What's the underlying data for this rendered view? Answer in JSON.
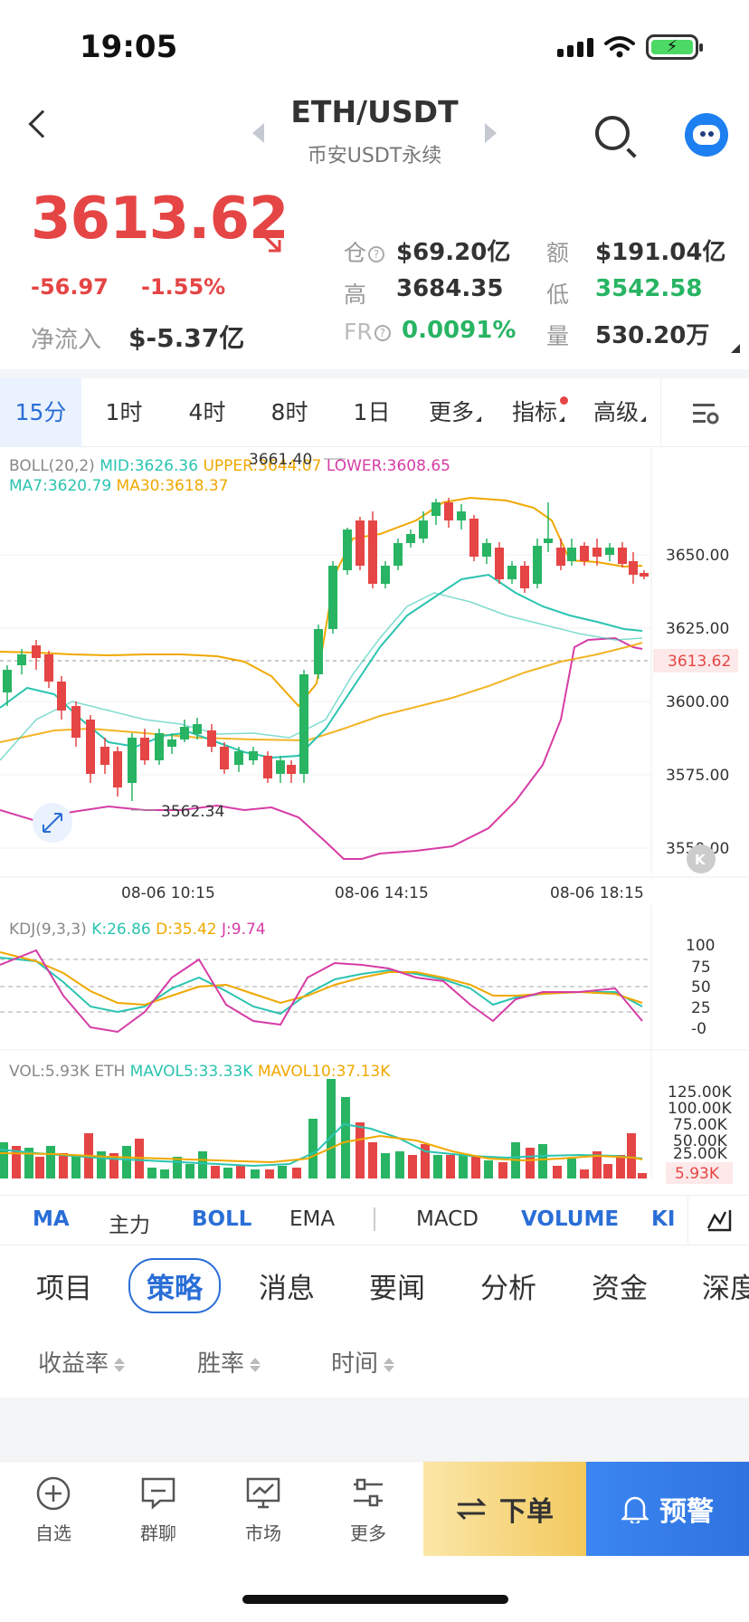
{
  "status_bar": {
    "time": "19:05"
  },
  "header": {
    "title": "ETH/USDT",
    "subtitle": "币安USDT永续"
  },
  "price": {
    "last": "3613.62",
    "change": "-56.97",
    "change_pct": "-1.55%",
    "inflow_label": "净流入",
    "inflow_value": "$-5.37亿",
    "open_interest_label": "仓",
    "open_interest": "$69.20亿",
    "amount_label": "额",
    "amount": "$191.04亿",
    "high_label": "高",
    "high": "3684.35",
    "low_label": "低",
    "low": "3542.58",
    "fr_label": "FR",
    "fr": "0.0091%",
    "volume_label": "量",
    "volume": "530.20万"
  },
  "interval_tabs": [
    {
      "label": "15分",
      "active": true
    },
    {
      "label": "1时"
    },
    {
      "label": "4时"
    },
    {
      "label": "8时"
    },
    {
      "label": "1日"
    },
    {
      "label": "更多"
    },
    {
      "label": "指标"
    },
    {
      "label": "高级"
    }
  ],
  "main_chart": {
    "boll_label": "BOLL(20,2)",
    "mid": "MID:3626.36",
    "upper": "UPPER:3644.07",
    "lower": "LOWER:3608.65",
    "ma7": "MA7:3620.79",
    "ma30": "MA30:3618.37",
    "max_label": "3661.40",
    "min_label": "3562.34",
    "price_tag": "3613.62",
    "y_ticks": [
      "3650.00",
      "3625.00",
      "3600.00",
      "3575.00",
      "3550.00"
    ],
    "x_ticks": [
      "08-06 10:15",
      "08-06 14:15",
      "08-06 18:15"
    ]
  },
  "kdj": {
    "label": "KDJ(9,3,3)",
    "k": "K:26.86",
    "d": "D:35.42",
    "j": "J:9.74",
    "y_ticks": [
      "100",
      "75",
      "50",
      "25",
      "-0"
    ]
  },
  "vol": {
    "label": "VOL:5.93K ETH",
    "mavol5": "MAVOL5:33.33K",
    "mavol10": "MAVOL10:37.13K",
    "y_ticks": [
      "125.00K",
      "100.00K",
      "75.00K",
      "50.00K",
      "25.00K"
    ],
    "current_tag": "5.93K"
  },
  "indicator_tabs": [
    "MA",
    "主力",
    "BOLL",
    "EMA",
    "MACD",
    "VOLUME",
    "KI"
  ],
  "section_tabs": [
    "项目",
    "策略",
    "消息",
    "要闻",
    "分析",
    "资金",
    "深度"
  ],
  "sort_options": [
    "收益率",
    "胜率",
    "时间"
  ],
  "bottom_nav": [
    {
      "label": "自选",
      "icon": "plus-circle-icon"
    },
    {
      "label": "群聊",
      "icon": "chat-icon"
    },
    {
      "label": "市场",
      "icon": "monitor-chart-icon"
    },
    {
      "label": "更多",
      "icon": "sliders-icon"
    }
  ],
  "actions": {
    "order": "下单",
    "alert": "预警"
  },
  "colors": {
    "up": "#28b463",
    "down": "#e54545",
    "accent": "#2a6ed6",
    "boll_upper": "#f0a800",
    "boll_lower": "#d63ca6",
    "mid": "#2ac4b0"
  }
}
